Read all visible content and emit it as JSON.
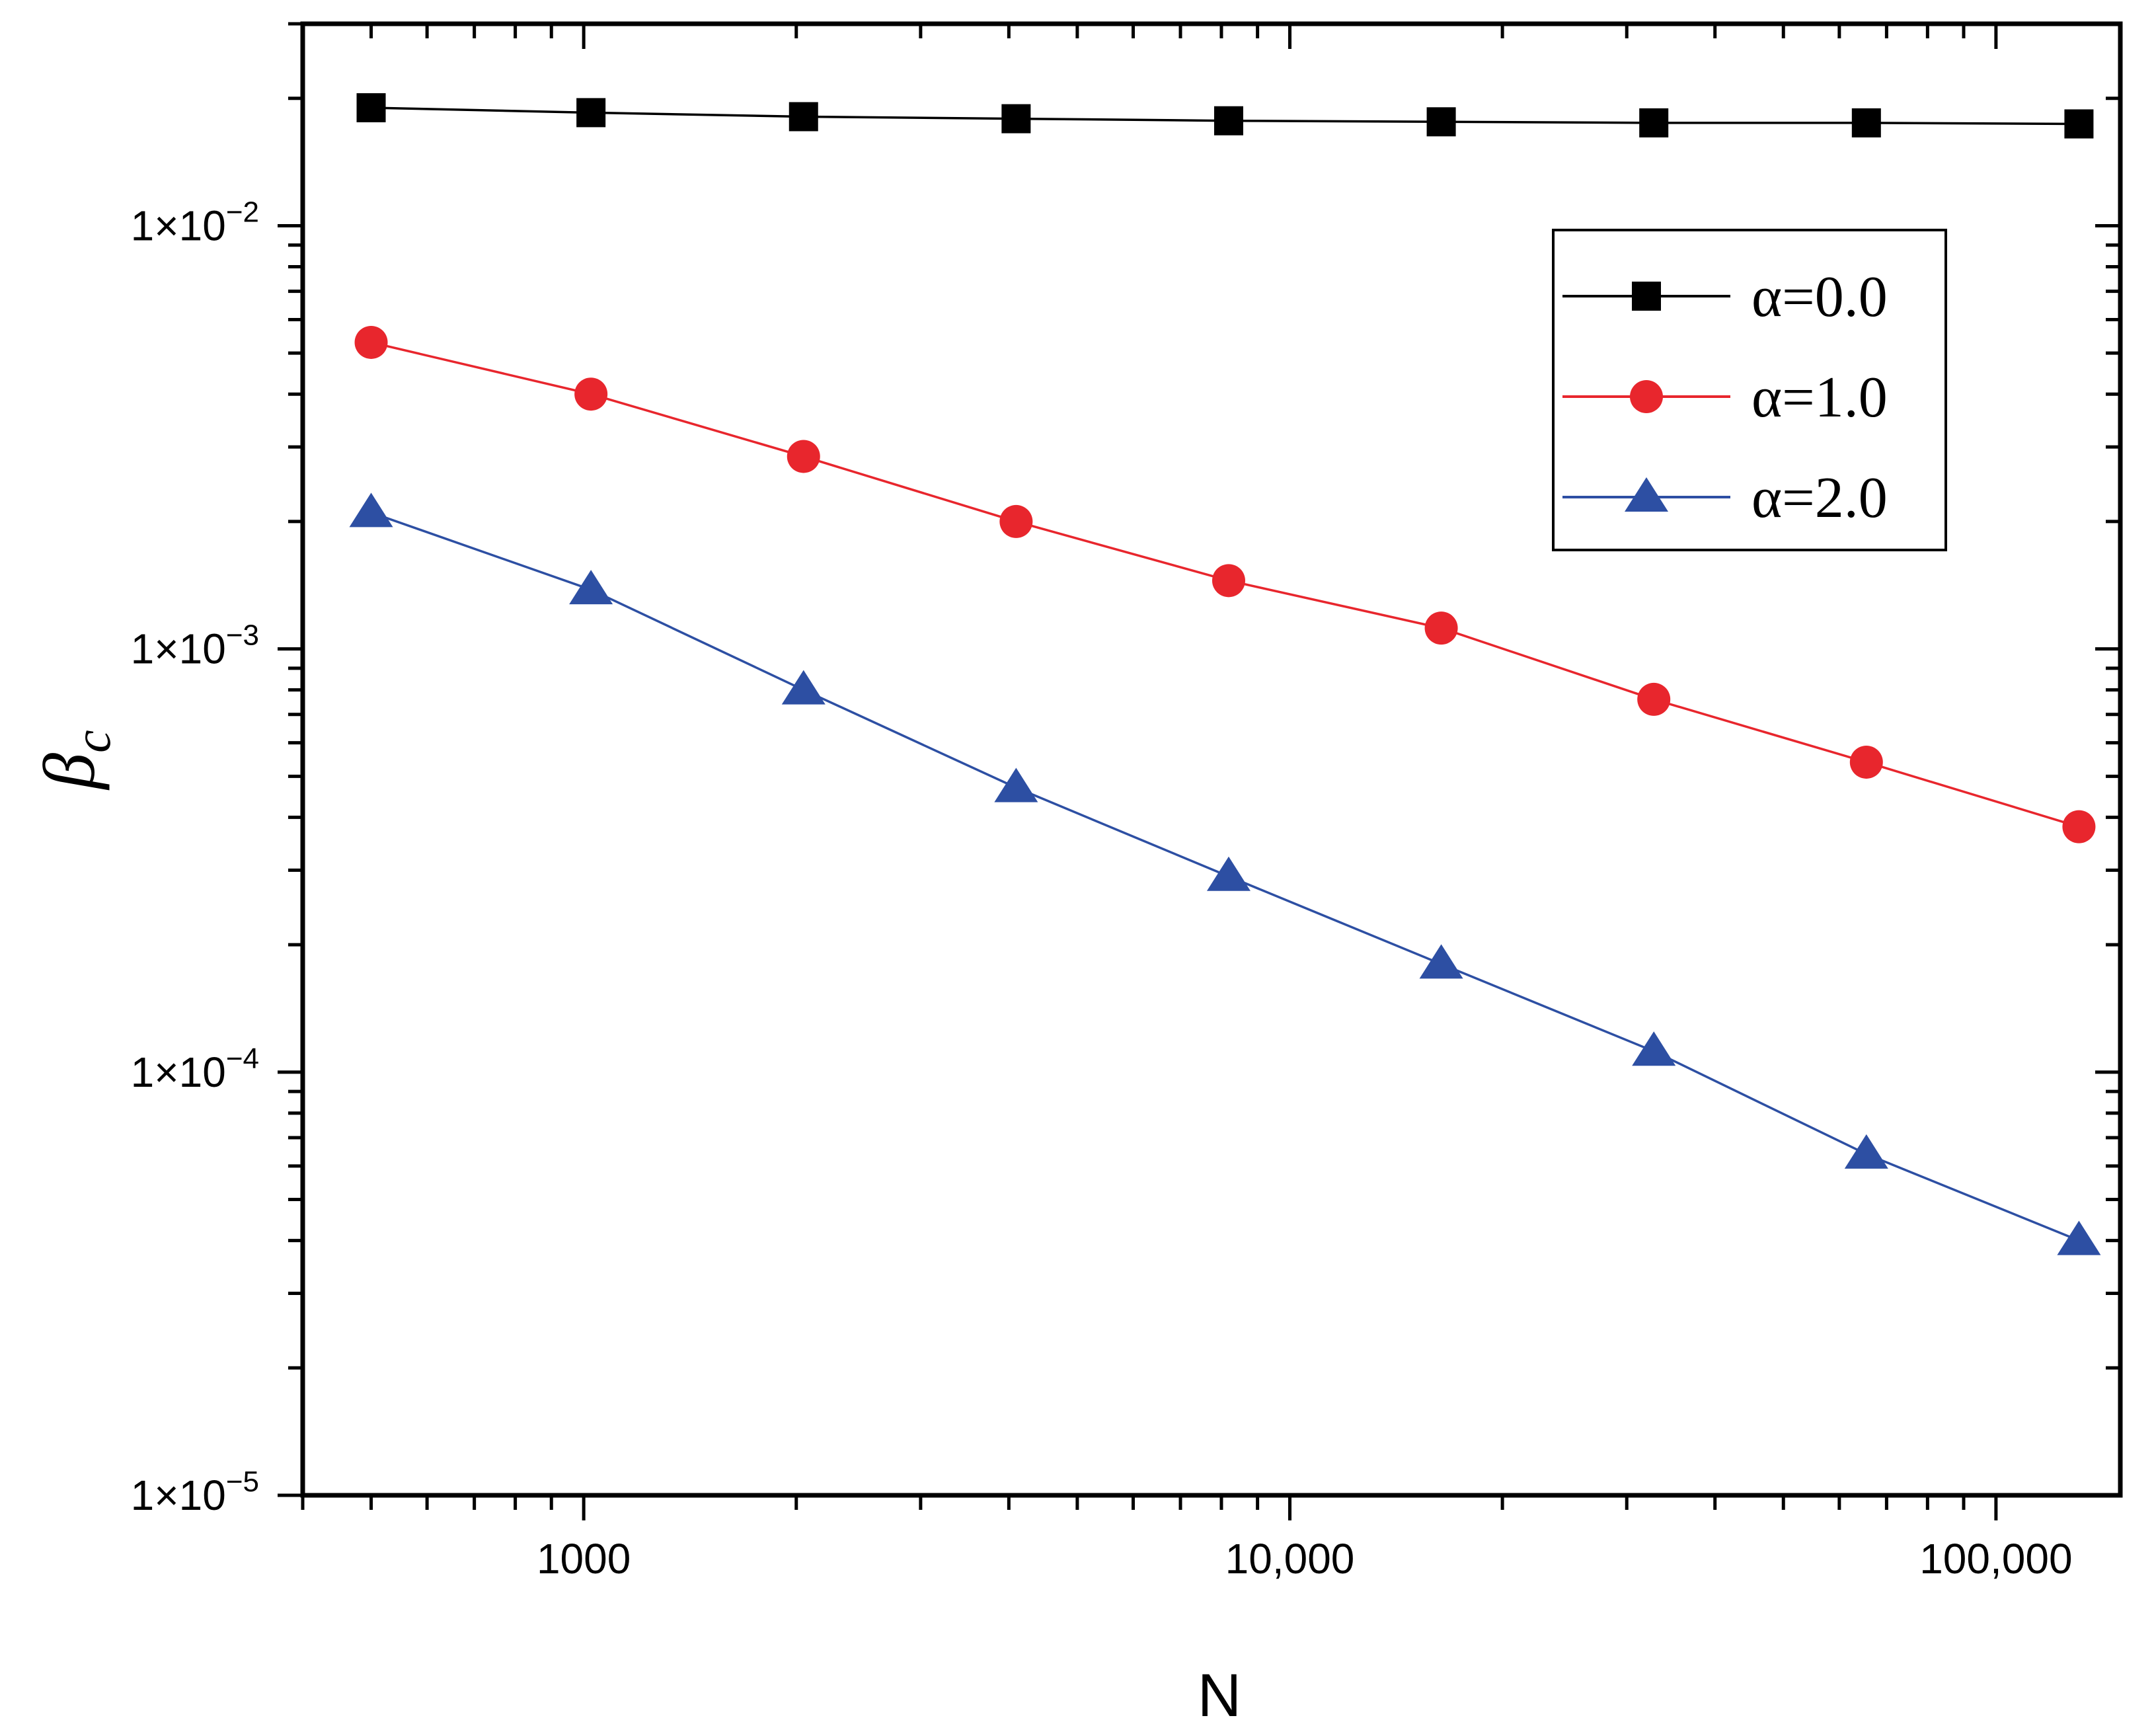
{
  "chart_data": {
    "type": "line",
    "scale": {
      "x": "log",
      "y": "log"
    },
    "xlabel": "N",
    "ylabel": "β",
    "ylabel_subscript": "c",
    "xlim": [
      400,
      150000
    ],
    "ylim": [
      1e-05,
      0.03
    ],
    "x_tick_labels": [
      {
        "value": 1000,
        "label": "1000"
      },
      {
        "value": 10000,
        "label": "10,000"
      },
      {
        "value": 100000,
        "label": "100,000"
      }
    ],
    "y_tick_labels": [
      {
        "value": 0.01,
        "mantissa": "1×10",
        "exponent": "−2"
      },
      {
        "value": 0.001,
        "mantissa": "1×10",
        "exponent": "−3"
      },
      {
        "value": 0.0001,
        "mantissa": "1×10",
        "exponent": "−4"
      },
      {
        "value": 1e-05,
        "mantissa": "1×10",
        "exponent": "−5"
      }
    ],
    "x": [
      500,
      1024,
      2048,
      4096,
      8192,
      16384,
      32768,
      65536,
      131072
    ],
    "series": [
      {
        "name": "α=0.0",
        "color": "#000000",
        "marker": "square",
        "values": [
          0.019,
          0.0185,
          0.0181,
          0.0179,
          0.0177,
          0.0176,
          0.0175,
          0.0175,
          0.0174
        ]
      },
      {
        "name": "α=1.0",
        "color": "#e8262d",
        "marker": "circle",
        "values": [
          0.0053,
          0.004,
          0.00285,
          0.002,
          0.00145,
          0.00112,
          0.00076,
          0.00054,
          0.00038
        ]
      },
      {
        "name": "α=2.0",
        "color": "#2d4fa3",
        "marker": "triangle",
        "values": [
          0.0021,
          0.00138,
          0.0008,
          0.00047,
          0.00029,
          0.00018,
          0.000112,
          6.4e-05,
          4e-05
        ]
      }
    ],
    "legend_position": "top-right"
  }
}
